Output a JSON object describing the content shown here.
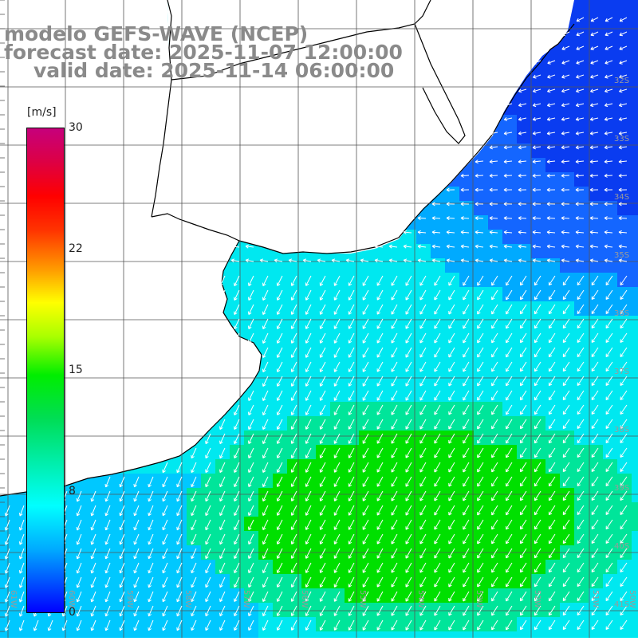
{
  "title": {
    "line1": "modelo GEFS-WAVE (NCEP)",
    "line2": "forecast date: 2025-11-07 12:00:00",
    "line3": "valid date: 2025-11-14 06:00:00"
  },
  "colorbar": {
    "unit": "[m/s]",
    "ticks": [
      "30",
      "22",
      "15",
      "8",
      "0"
    ],
    "tick_values": [
      30,
      22,
      15,
      8,
      0
    ],
    "range": [
      0,
      30
    ],
    "stops": [
      "#0000ff",
      "#00aaff",
      "#00ffff",
      "#00dd55",
      "#00ee00",
      "#aaff00",
      "#ffff00",
      "#ff9900",
      "#ff3300",
      "#ff0000",
      "#c6007c"
    ]
  },
  "map": {
    "lat_labels": [
      "32S",
      "33S",
      "34S",
      "35S",
      "36S",
      "37S",
      "38S",
      "39S",
      "40S",
      "41S"
    ],
    "lon_labels": [
      "61W",
      "60W",
      "59W",
      "58W",
      "57W",
      "56W",
      "55W",
      "54W",
      "53W",
      "52W",
      "51W",
      "50W"
    ],
    "colors": {
      "land": "#ffffff",
      "coast": "#000000",
      "grid": "#555555",
      "ocean_deep_blue": "#0a3cf0",
      "ocean_light_blue": "#00aaff",
      "ocean_cyan": "#00e8f0",
      "ocean_green": "#00e000",
      "arrow": "#ffffff"
    },
    "dominant_wind_direction": "southwest-bound (blowing to the SSW/SW)"
  }
}
